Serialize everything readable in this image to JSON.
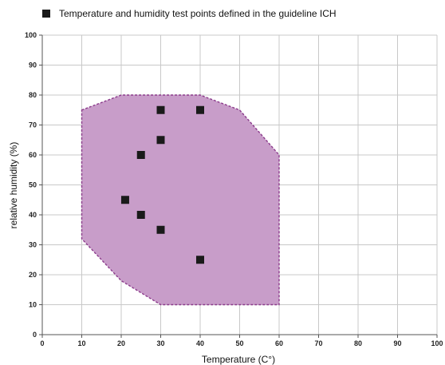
{
  "chart_data": {
    "type": "scatter",
    "legend": {
      "label": "Temperature and humidity test points defined in the guideline ICH",
      "placement": "top-left",
      "marker": "square"
    },
    "xlabel": "Temperature (C°)",
    "ylabel": "relative humidity (%)",
    "xlim": [
      0,
      100
    ],
    "ylim": [
      0,
      100
    ],
    "x_ticks": [
      0,
      10,
      20,
      30,
      40,
      50,
      60,
      70,
      80,
      90,
      100
    ],
    "y_ticks": [
      0,
      10,
      20,
      30,
      40,
      50,
      60,
      70,
      80,
      90,
      100
    ],
    "grid": true,
    "region": {
      "fill_color": "#c89dc9",
      "border_color": "#8c3c8c",
      "border_style": "dashed",
      "vertices": [
        {
          "x": 10,
          "y": 75
        },
        {
          "x": 20,
          "y": 80
        },
        {
          "x": 40,
          "y": 80
        },
        {
          "x": 50,
          "y": 75
        },
        {
          "x": 60,
          "y": 60
        },
        {
          "x": 60,
          "y": 10
        },
        {
          "x": 30,
          "y": 10
        },
        {
          "x": 20,
          "y": 18
        },
        {
          "x": 10,
          "y": 32
        }
      ]
    },
    "points": [
      {
        "x": 30,
        "y": 75
      },
      {
        "x": 40,
        "y": 75
      },
      {
        "x": 30,
        "y": 65
      },
      {
        "x": 25,
        "y": 60
      },
      {
        "x": 21,
        "y": 45
      },
      {
        "x": 25,
        "y": 40
      },
      {
        "x": 30,
        "y": 35
      },
      {
        "x": 40,
        "y": 25
      }
    ],
    "point_color": "#1a1a1a",
    "grid_color": "#c8c8c8",
    "axis_color": "#555555"
  }
}
